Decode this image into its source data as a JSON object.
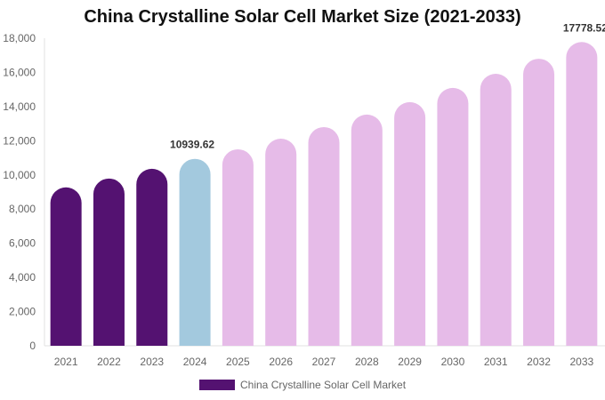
{
  "chart_data": {
    "type": "bar",
    "title": "China Crystalline Solar Cell Market Size (2021-2033)",
    "categories": [
      "2021",
      "2022",
      "2023",
      "2024",
      "2025",
      "2026",
      "2027",
      "2028",
      "2029",
      "2030",
      "2031",
      "2032",
      "2033"
    ],
    "series": [
      {
        "name": "China Crystalline Solar Cell Market",
        "values": [
          9270,
          9790,
          10360,
          10939.62,
          11500,
          12120,
          12800,
          13530,
          14260,
          15090,
          15920,
          16800,
          17778.52
        ]
      }
    ],
    "data_labels": [
      {
        "category": "2024",
        "text": "10939.62"
      },
      {
        "category": "2033",
        "text": "17778.52"
      }
    ],
    "ylim": [
      0,
      18000
    ],
    "yticks": [
      0,
      2000,
      4000,
      6000,
      8000,
      10000,
      12000,
      14000,
      16000,
      18000
    ],
    "ytick_labels": [
      "0",
      "2,000",
      "4,000",
      "6,000",
      "8,000",
      "10,000",
      "12,000",
      "14,000",
      "16,000",
      "18,000"
    ],
    "colors": {
      "historical": "#541271",
      "current": "#a3c9de",
      "forecast": "#e6bbe8"
    },
    "legend": "bottom",
    "grid": false
  }
}
